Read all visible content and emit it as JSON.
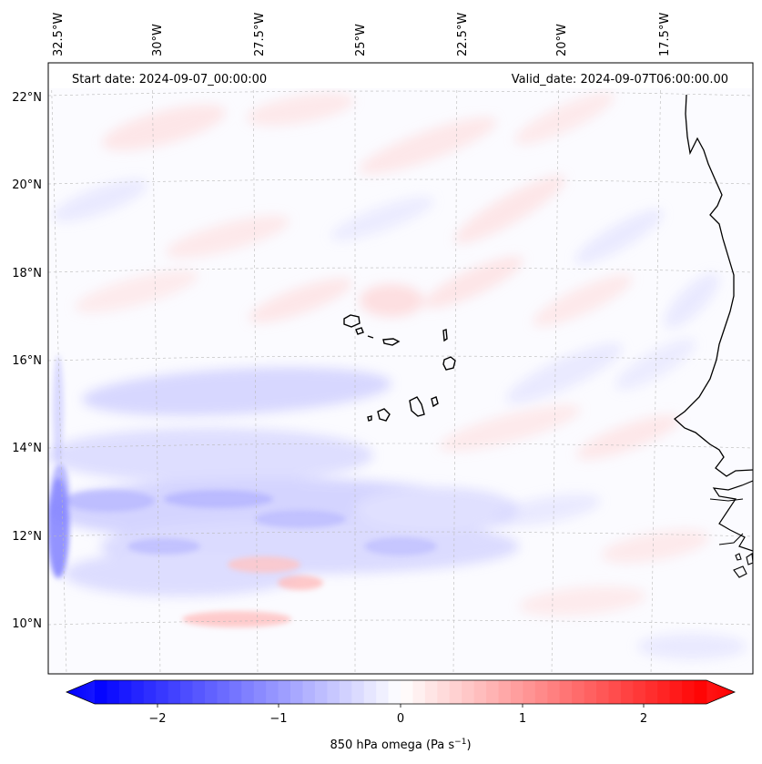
{
  "header": {
    "start_date": "Start date: 2024-09-07_00:00:00",
    "valid_date": "Valid_date: 2024-09-07T06:00:00.00"
  },
  "axes": {
    "lon_labels": [
      "32.5°W",
      "30°W",
      "27.5°W",
      "25°W",
      "22.5°W",
      "20°W",
      "17.5°W"
    ],
    "lat_labels": [
      "22°N",
      "20°N",
      "18°N",
      "16°N",
      "14°N",
      "12°N",
      "10°N"
    ]
  },
  "colorbar": {
    "ticks": [
      "−2",
      "−1",
      "0",
      "1",
      "2"
    ],
    "label": "850 hPa omega (Pa s",
    "label_sup": "−1",
    "label_close": ")",
    "range": [
      -2.5,
      2.5
    ],
    "colormap": "bwr",
    "low_color": "#0000ff",
    "mid_color": "#ffffff",
    "high_color": "#ff0000"
  },
  "map_features": {
    "land": "West Africa coastline (Mauritania, Senegal, Guinea-Bissau)",
    "islands": "Cape Verde Islands",
    "strongest_ascent_region": "12°N near 32.5°W"
  }
}
